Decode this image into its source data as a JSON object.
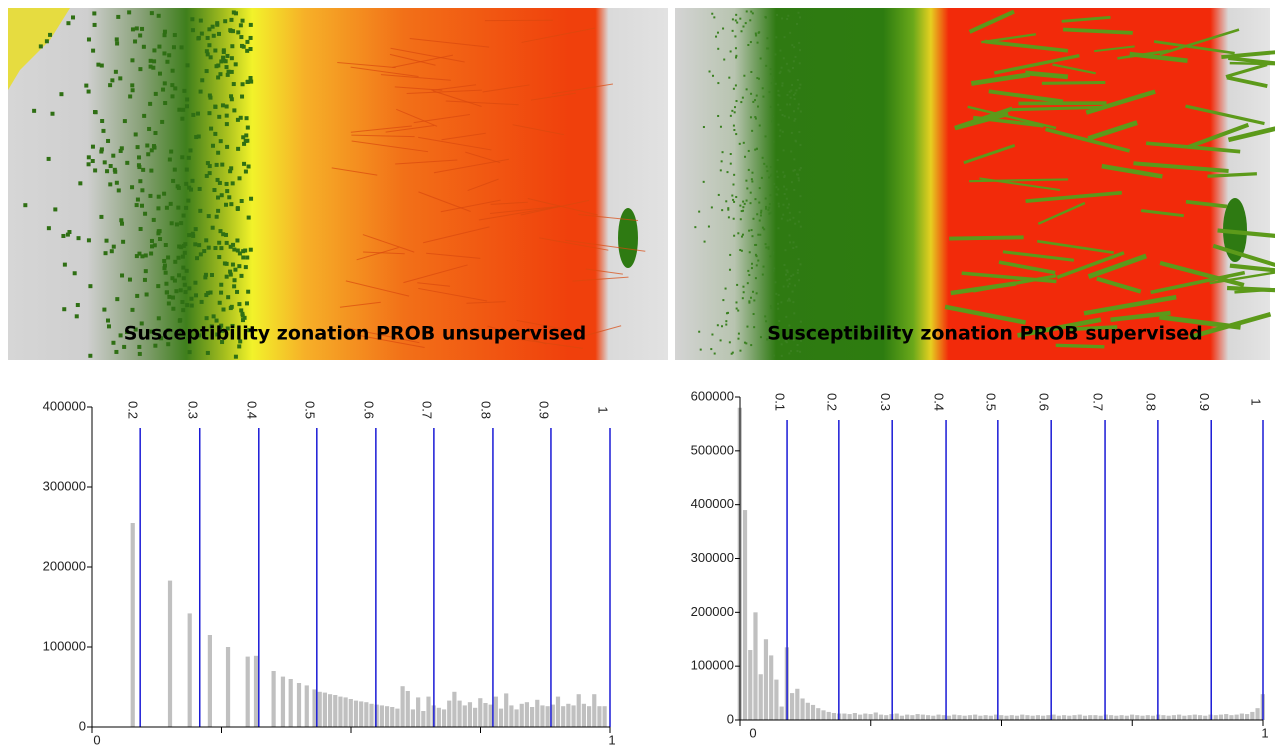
{
  "panels": [
    {
      "caption": "Susceptibility zonation PROB unsupervised"
    },
    {
      "caption": "Susceptibility zonation PROB supervised"
    }
  ],
  "chart_data": [
    {
      "type": "bar",
      "color": "#c0c0c0",
      "line_color": "#1a1ad6",
      "x": [
        0.079,
        0.151,
        0.189,
        0.228,
        0.263,
        0.301,
        0.317,
        0.351,
        0.369,
        0.384,
        0.4,
        0.415,
        0.43,
        0.44,
        0.45,
        0.46,
        0.47,
        0.48,
        0.49,
        0.5,
        0.51,
        0.52,
        0.53,
        0.54,
        0.55,
        0.56,
        0.57,
        0.58,
        0.59,
        0.6,
        0.61,
        0.62,
        0.63,
        0.64,
        0.65,
        0.66,
        0.67,
        0.68,
        0.69,
        0.7,
        0.71,
        0.72,
        0.73,
        0.74,
        0.75,
        0.76,
        0.77,
        0.78,
        0.79,
        0.8,
        0.81,
        0.82,
        0.83,
        0.84,
        0.85,
        0.86,
        0.87,
        0.88,
        0.89,
        0.9,
        0.91,
        0.92,
        0.93,
        0.94,
        0.95,
        0.96,
        0.97,
        0.98,
        0.99
      ],
      "values": [
        255000,
        183000,
        142000,
        115000,
        100000,
        88000,
        89000,
        70000,
        63000,
        60000,
        55000,
        52000,
        47000,
        44000,
        43000,
        41000,
        40000,
        38000,
        37000,
        35000,
        33000,
        32000,
        31000,
        29000,
        28000,
        27000,
        26000,
        25000,
        23000,
        51000,
        45000,
        22000,
        37000,
        20000,
        38000,
        27000,
        24000,
        22000,
        33000,
        44000,
        33000,
        27000,
        31000,
        24000,
        36000,
        30000,
        28000,
        38000,
        23000,
        42000,
        27000,
        22000,
        29000,
        31000,
        25000,
        34000,
        27000,
        26000,
        28000,
        38000,
        26000,
        29000,
        27000,
        41000,
        29000,
        26000,
        41000,
        26000,
        26000
      ],
      "xlim": [
        0,
        1
      ],
      "ylim": [
        0,
        400000
      ],
      "xticks": [
        0,
        1
      ],
      "xminor": [
        0.25,
        0.5,
        0.75
      ],
      "yticks": [
        0,
        100000,
        200000,
        300000,
        400000
      ],
      "class_lines": [
        {
          "x": 0.093,
          "label": "0.2"
        },
        {
          "x": 0.208,
          "label": "0.3"
        },
        {
          "x": 0.322,
          "label": "0.4"
        },
        {
          "x": 0.434,
          "label": "0.5"
        },
        {
          "x": 0.548,
          "label": "0.6"
        },
        {
          "x": 0.66,
          "label": "0.7"
        },
        {
          "x": 0.774,
          "label": "0.8"
        },
        {
          "x": 0.886,
          "label": "0.9"
        },
        {
          "x": 1,
          "label": "1"
        }
      ]
    },
    {
      "type": "bar",
      "color": "#c0c0c0",
      "line_color": "#1a1ad6",
      "x": [
        0,
        0.01,
        0.02,
        0.03,
        0.04,
        0.05,
        0.06,
        0.07,
        0.08,
        0.09,
        0.1,
        0.11,
        0.12,
        0.13,
        0.14,
        0.15,
        0.16,
        0.17,
        0.18,
        0.19,
        0.2,
        0.21,
        0.22,
        0.23,
        0.24,
        0.25,
        0.26,
        0.27,
        0.28,
        0.29,
        0.3,
        0.31,
        0.32,
        0.33,
        0.34,
        0.35,
        0.36,
        0.37,
        0.38,
        0.39,
        0.4,
        0.41,
        0.42,
        0.43,
        0.44,
        0.45,
        0.46,
        0.47,
        0.48,
        0.49,
        0.5,
        0.51,
        0.52,
        0.53,
        0.54,
        0.55,
        0.56,
        0.57,
        0.58,
        0.59,
        0.6,
        0.61,
        0.62,
        0.63,
        0.64,
        0.65,
        0.66,
        0.67,
        0.68,
        0.69,
        0.7,
        0.71,
        0.72,
        0.73,
        0.74,
        0.75,
        0.76,
        0.77,
        0.78,
        0.79,
        0.8,
        0.81,
        0.82,
        0.83,
        0.84,
        0.85,
        0.86,
        0.87,
        0.88,
        0.89,
        0.9,
        0.91,
        0.92,
        0.93,
        0.94,
        0.95,
        0.96,
        0.97,
        0.98,
        0.99,
        1
      ],
      "values": [
        580000,
        390000,
        130000,
        200000,
        85000,
        150000,
        120000,
        75000,
        25000,
        135000,
        50000,
        58000,
        40000,
        32000,
        28000,
        22000,
        18000,
        15000,
        13000,
        12000,
        12000,
        11000,
        13000,
        10000,
        12000,
        11000,
        14000,
        10000,
        9000,
        11000,
        12000,
        8000,
        10000,
        9000,
        11000,
        10000,
        9000,
        8000,
        10000,
        9000,
        8000,
        10000,
        9000,
        8000,
        9000,
        10000,
        8000,
        9000,
        8000,
        10000,
        9000,
        8000,
        9000,
        8000,
        10000,
        9000,
        8000,
        9000,
        8000,
        9000,
        10000,
        8000,
        9000,
        8000,
        9000,
        10000,
        8000,
        9000,
        9000,
        8000,
        10000,
        9000,
        8000,
        9000,
        8000,
        10000,
        9000,
        8000,
        9000,
        8000,
        10000,
        9000,
        8000,
        9000,
        10000,
        8000,
        9000,
        10000,
        9000,
        8000,
        10000,
        9000,
        10000,
        11000,
        9000,
        10000,
        12000,
        11000,
        15000,
        22000,
        48000
      ],
      "xlim": [
        0,
        1
      ],
      "ylim": [
        0,
        600000
      ],
      "xticks": [
        0,
        1
      ],
      "xminor": [
        0.25,
        0.5,
        0.75
      ],
      "yticks": [
        0,
        100000,
        200000,
        300000,
        400000,
        500000,
        600000
      ],
      "class_lines": [
        {
          "x": 0.09,
          "label": "0.1"
        },
        {
          "x": 0.189,
          "label": "0.2"
        },
        {
          "x": 0.291,
          "label": "0.3"
        },
        {
          "x": 0.394,
          "label": "0.4"
        },
        {
          "x": 0.493,
          "label": "0.5"
        },
        {
          "x": 0.595,
          "label": "0.6"
        },
        {
          "x": 0.698,
          "label": "0.7"
        },
        {
          "x": 0.799,
          "label": "0.8"
        },
        {
          "x": 0.901,
          "label": "0.9"
        },
        {
          "x": 1,
          "label": "1"
        }
      ]
    }
  ]
}
